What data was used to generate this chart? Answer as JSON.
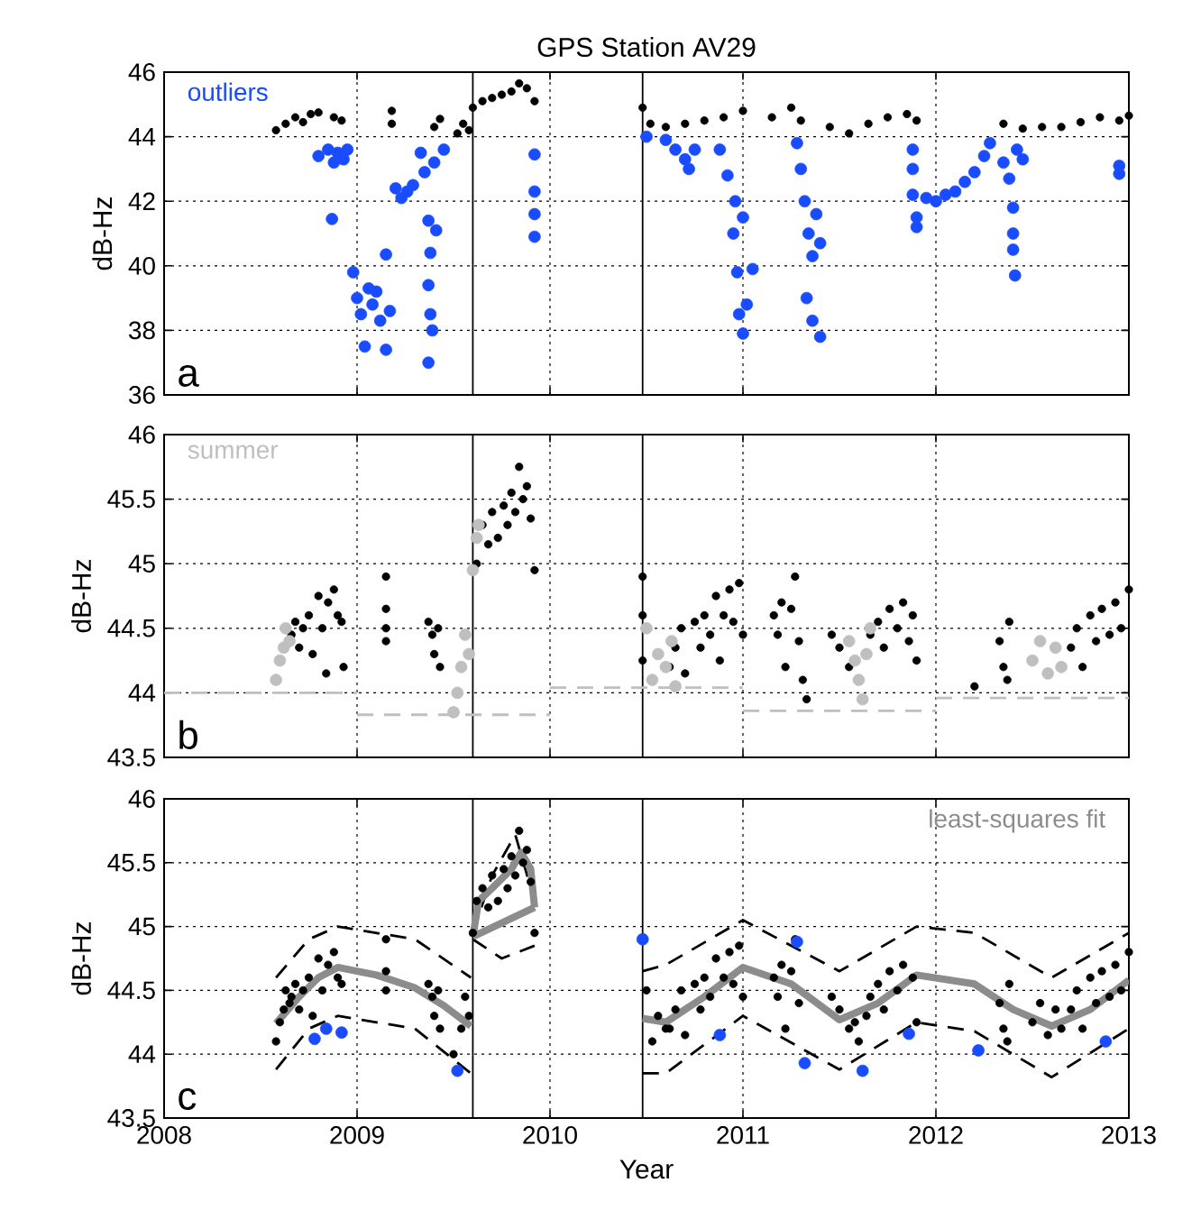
{
  "chart_data": [
    {
      "type": "scatter",
      "title": "GPS Station  AV29",
      "ylabel": "dB-Hz",
      "xlim": [
        2008,
        2013
      ],
      "xticks": [
        2008,
        2009,
        2010,
        2011,
        2012,
        2013
      ],
      "ylim": [
        36,
        46
      ],
      "yticks": [
        36,
        38,
        40,
        42,
        44,
        46
      ],
      "tick_labels": "y",
      "grid": true,
      "legend": "top left",
      "marker": "circle",
      "annotations": [
        "a"
      ],
      "ref_lines": [
        {
          "axis": "x",
          "value": 2009.6,
          "color": "#000000"
        },
        {
          "axis": "x",
          "value": 2010.48,
          "color": "#000000"
        }
      ],
      "series": [
        {
          "color": "#000000",
          "x": [
            2008.58,
            2008.63,
            2008.68,
            2008.72,
            2008.76,
            2008.8,
            2008.88,
            2008.92,
            2009.18,
            2009.18,
            2009.4,
            2009.43,
            2009.52,
            2009.55,
            2009.58,
            2009.6,
            2009.65,
            2009.7,
            2009.75,
            2009.8,
            2009.84,
            2009.88,
            2009.92,
            2010.48,
            2010.52,
            2010.6,
            2010.7,
            2010.8,
            2010.9,
            2011.0,
            2011.15,
            2011.25,
            2011.3,
            2011.45,
            2011.55,
            2011.65,
            2011.75,
            2011.85,
            2011.9,
            2012.35,
            2012.45,
            2012.55,
            2012.65,
            2012.75,
            2012.85,
            2012.95,
            2013.0
          ],
          "values": [
            44.2,
            44.4,
            44.6,
            44.45,
            44.7,
            44.75,
            44.6,
            44.5,
            44.8,
            44.4,
            44.3,
            44.55,
            44.1,
            44.4,
            44.2,
            44.9,
            45.1,
            45.2,
            45.3,
            45.4,
            45.65,
            45.5,
            45.1,
            44.9,
            44.4,
            44.3,
            44.4,
            44.5,
            44.6,
            44.8,
            44.6,
            44.9,
            44.5,
            44.3,
            44.1,
            44.4,
            44.6,
            44.7,
            44.5,
            44.4,
            44.25,
            44.3,
            44.3,
            44.45,
            44.6,
            44.5,
            44.65
          ]
        },
        {
          "name": "outliers",
          "color": "#1a4cff",
          "x": [
            2008.8,
            2008.85,
            2008.88,
            2008.9,
            2008.93,
            2008.95,
            2008.87,
            2008.98,
            2009.0,
            2009.02,
            2009.04,
            2009.06,
            2009.08,
            2009.1,
            2009.12,
            2009.15,
            2009.17,
            2009.15,
            2009.2,
            2009.23,
            2009.26,
            2009.29,
            2009.33,
            2009.35,
            2009.37,
            2009.38,
            2009.37,
            2009.38,
            2009.37,
            2009.39,
            2009.41,
            2009.4,
            2009.45,
            2009.92,
            2009.92,
            2009.92,
            2009.92,
            2010.5,
            2010.6,
            2010.65,
            2010.7,
            2010.75,
            2010.72,
            2010.88,
            2010.92,
            2010.96,
            2010.95,
            2011.0,
            2010.97,
            2010.98,
            2011.0,
            2011.02,
            2011.05,
            2011.28,
            2011.3,
            2011.32,
            2011.34,
            2011.36,
            2011.33,
            2011.36,
            2011.4,
            2011.38,
            2011.4,
            2011.88,
            2011.88,
            2011.88,
            2011.9,
            2011.9,
            2011.95,
            2012.0,
            2012.05,
            2012.1,
            2012.15,
            2012.2,
            2012.25,
            2012.28,
            2012.35,
            2012.38,
            2012.42,
            2012.4,
            2012.4,
            2012.4,
            2012.41,
            2012.45,
            2012.95,
            2012.95
          ],
          "values": [
            43.4,
            43.6,
            43.2,
            43.5,
            43.3,
            43.6,
            41.45,
            39.8,
            39.0,
            38.5,
            37.5,
            39.3,
            38.8,
            39.2,
            38.3,
            37.4,
            38.6,
            40.35,
            42.4,
            42.1,
            42.3,
            42.5,
            43.5,
            42.9,
            41.4,
            40.4,
            39.4,
            38.5,
            37.0,
            38.0,
            41.1,
            43.2,
            43.6,
            43.45,
            42.3,
            41.6,
            40.9,
            44.0,
            43.9,
            43.6,
            43.3,
            43.6,
            43.0,
            43.6,
            42.8,
            42.0,
            41.0,
            41.5,
            39.8,
            38.5,
            37.9,
            38.8,
            39.9,
            43.8,
            43.0,
            42.0,
            41.0,
            40.3,
            39.0,
            38.3,
            37.8,
            41.6,
            40.7,
            43.6,
            43.0,
            42.2,
            41.5,
            41.2,
            42.1,
            42.0,
            42.2,
            42.3,
            42.6,
            42.9,
            43.4,
            43.8,
            43.2,
            42.7,
            43.6,
            41.8,
            41.0,
            40.5,
            39.7,
            43.3,
            43.1,
            42.85
          ]
        }
      ]
    },
    {
      "type": "scatter",
      "ylabel": "dB-Hz",
      "xlim": [
        2008,
        2013
      ],
      "xticks": [
        2008,
        2009,
        2010,
        2011,
        2012,
        2013
      ],
      "ylim": [
        43.5,
        46
      ],
      "yticks": [
        43.5,
        44,
        44.5,
        45,
        45.5,
        46
      ],
      "tick_labels": "y",
      "grid": true,
      "legend": "top left",
      "marker": "circle",
      "annotations": [
        "b"
      ],
      "ref_lines": [
        {
          "axis": "x",
          "value": 2009.6,
          "color": "#000000"
        },
        {
          "axis": "x",
          "value": 2010.48,
          "color": "#000000"
        }
      ],
      "series": [
        {
          "type": "line",
          "color": "#bfbfbf",
          "line_style": "dashed",
          "marker": "none",
          "x": [
            2008,
            2009,
            null,
            2009,
            2010,
            null,
            2010,
            2011,
            null,
            2011,
            2012,
            null,
            2012,
            2013
          ],
          "values": [
            44.0,
            44.0,
            null,
            43.83,
            43.83,
            null,
            44.04,
            44.04,
            null,
            43.86,
            43.86,
            null,
            43.96,
            43.96
          ]
        },
        {
          "color": "#000000",
          "x": [
            2008.66,
            2008.68,
            2008.7,
            2008.72,
            2008.75,
            2008.77,
            2008.8,
            2008.82,
            2008.84,
            2008.85,
            2008.88,
            2008.9,
            2008.92,
            2008.93,
            2009.15,
            2009.15,
            2009.15,
            2009.15,
            2009.37,
            2009.39,
            2009.4,
            2009.42,
            2009.43,
            2009.62,
            2009.65,
            2009.68,
            2009.7,
            2009.73,
            2009.76,
            2009.78,
            2009.8,
            2009.82,
            2009.84,
            2009.86,
            2009.88,
            2009.9,
            2009.92,
            2010.48,
            2010.48,
            2010.48,
            2010.62,
            2010.65,
            2010.68,
            2010.7,
            2010.75,
            2010.78,
            2010.8,
            2010.83,
            2010.86,
            2010.88,
            2010.9,
            2010.93,
            2010.95,
            2010.98,
            2011.0,
            2011.16,
            2011.18,
            2011.2,
            2011.22,
            2011.25,
            2011.27,
            2011.29,
            2011.31,
            2011.33,
            2011.46,
            2011.5,
            2011.55,
            2011.66,
            2011.7,
            2011.73,
            2011.76,
            2011.8,
            2011.83,
            2011.86,
            2011.88,
            2011.9,
            2012.2,
            2012.33,
            2012.35,
            2012.37,
            2012.38,
            2012.7,
            2012.73,
            2012.76,
            2012.8,
            2012.83,
            2012.86,
            2012.9,
            2012.93,
            2012.96,
            2013.0
          ],
          "values": [
            44.45,
            44.55,
            44.35,
            44.5,
            44.6,
            44.3,
            44.75,
            44.5,
            44.15,
            44.7,
            44.8,
            44.6,
            44.55,
            44.2,
            44.9,
            44.65,
            44.5,
            44.4,
            44.55,
            44.45,
            44.3,
            44.5,
            44.2,
            45.0,
            45.3,
            45.15,
            45.4,
            45.2,
            45.45,
            45.3,
            45.55,
            45.4,
            45.75,
            45.5,
            45.6,
            45.35,
            44.95,
            44.9,
            44.6,
            44.25,
            44.2,
            44.35,
            44.5,
            44.15,
            44.55,
            44.35,
            44.6,
            44.45,
            44.75,
            44.25,
            44.6,
            44.8,
            44.55,
            44.85,
            44.45,
            44.6,
            44.45,
            44.7,
            44.2,
            44.65,
            44.9,
            44.4,
            44.1,
            43.95,
            44.45,
            44.35,
            44.2,
            44.45,
            44.55,
            44.35,
            44.65,
            44.5,
            44.7,
            44.4,
            44.6,
            44.25,
            44.05,
            44.4,
            44.2,
            44.1,
            44.55,
            44.35,
            44.5,
            44.2,
            44.6,
            44.4,
            44.65,
            44.45,
            44.7,
            44.5,
            44.8
          ]
        },
        {
          "name": "summer",
          "color": "#bfbfbf",
          "marker": "circle",
          "x": [
            2008.58,
            2008.6,
            2008.62,
            2008.63,
            2008.65,
            2009.5,
            2009.52,
            2009.54,
            2009.56,
            2009.58,
            2009.6,
            2009.62,
            2009.63,
            2010.5,
            2010.53,
            2010.56,
            2010.6,
            2010.63,
            2010.65,
            2011.55,
            2011.58,
            2011.6,
            2011.62,
            2011.64,
            2011.66,
            2012.5,
            2012.54,
            2012.58,
            2012.62,
            2012.65
          ],
          "values": [
            44.1,
            44.25,
            44.35,
            44.5,
            44.4,
            43.85,
            44.0,
            44.2,
            44.45,
            44.3,
            44.95,
            45.2,
            45.3,
            44.5,
            44.1,
            44.3,
            44.2,
            44.4,
            44.05,
            44.4,
            44.25,
            44.1,
            43.95,
            44.3,
            44.5,
            44.25,
            44.4,
            44.15,
            44.35,
            44.2
          ]
        }
      ]
    },
    {
      "type": "scatter",
      "xlabel": "Year",
      "ylabel": "dB-Hz",
      "xlim": [
        2008,
        2013
      ],
      "xticks": [
        2008,
        2009,
        2010,
        2011,
        2012,
        2013
      ],
      "ylim": [
        43.5,
        46
      ],
      "yticks": [
        43.5,
        44,
        44.5,
        45,
        45.5,
        46
      ],
      "grid": true,
      "legend": "top right",
      "marker": "circle",
      "annotations": [
        "c"
      ],
      "ref_lines": [
        {
          "axis": "x",
          "value": 2009.6,
          "color": "#000000"
        },
        {
          "axis": "x",
          "value": 2010.48,
          "color": "#000000"
        }
      ],
      "series": [
        {
          "color": "#000000",
          "marker": "circle",
          "x": [
            2008.58,
            2008.6,
            2008.62,
            2008.63,
            2008.65,
            2008.66,
            2008.68,
            2008.7,
            2008.72,
            2008.75,
            2008.77,
            2008.8,
            2008.82,
            2008.85,
            2008.88,
            2008.9,
            2008.92,
            2009.15,
            2009.15,
            2009.15,
            2009.37,
            2009.39,
            2009.4,
            2009.42,
            2009.43,
            2009.5,
            2009.54,
            2009.56,
            2009.58,
            2009.6,
            2009.62,
            2009.65,
            2009.68,
            2009.7,
            2009.73,
            2009.76,
            2009.78,
            2009.8,
            2009.82,
            2009.84,
            2009.86,
            2009.88,
            2009.9,
            2009.92,
            2010.5,
            2010.53,
            2010.56,
            2010.6,
            2010.62,
            2010.65,
            2010.68,
            2010.7,
            2010.75,
            2010.78,
            2010.8,
            2010.83,
            2010.86,
            2010.9,
            2010.93,
            2010.95,
            2010.98,
            2011.0,
            2011.16,
            2011.18,
            2011.2,
            2011.22,
            2011.25,
            2011.27,
            2011.29,
            2011.46,
            2011.5,
            2011.55,
            2011.58,
            2011.6,
            2011.64,
            2011.66,
            2011.7,
            2011.73,
            2011.76,
            2011.8,
            2011.83,
            2011.88,
            2011.9,
            2012.33,
            2012.35,
            2012.37,
            2012.38,
            2012.5,
            2012.54,
            2012.58,
            2012.62,
            2012.65,
            2012.7,
            2012.73,
            2012.76,
            2012.8,
            2012.83,
            2012.86,
            2012.9,
            2012.93,
            2012.96,
            2013.0
          ],
          "values": [
            44.1,
            44.25,
            44.35,
            44.5,
            44.4,
            44.45,
            44.55,
            44.35,
            44.5,
            44.6,
            44.3,
            44.75,
            44.5,
            44.7,
            44.8,
            44.6,
            44.55,
            44.9,
            44.65,
            44.5,
            44.55,
            44.45,
            44.3,
            44.5,
            44.2,
            44.0,
            44.2,
            44.45,
            44.3,
            44.95,
            45.2,
            45.3,
            45.15,
            45.4,
            45.2,
            45.45,
            45.3,
            45.55,
            45.4,
            45.75,
            45.5,
            45.6,
            45.35,
            44.95,
            44.5,
            44.1,
            44.3,
            44.2,
            44.2,
            44.35,
            44.5,
            44.15,
            44.55,
            44.35,
            44.6,
            44.45,
            44.75,
            44.6,
            44.8,
            44.55,
            44.85,
            44.45,
            44.6,
            44.45,
            44.7,
            44.2,
            44.65,
            44.9,
            44.4,
            44.45,
            44.35,
            44.2,
            44.25,
            44.1,
            44.3,
            44.45,
            44.55,
            44.35,
            44.65,
            44.5,
            44.7,
            44.6,
            44.25,
            44.4,
            44.2,
            44.1,
            44.55,
            44.25,
            44.4,
            44.15,
            44.35,
            44.2,
            44.35,
            44.5,
            44.2,
            44.6,
            44.4,
            44.65,
            44.45,
            44.7,
            44.5,
            44.8
          ]
        },
        {
          "type": "line",
          "color": "#000000",
          "line_style": "dashed",
          "marker": "none",
          "x": [
            2008.58,
            2008.75,
            2008.9,
            2009.3,
            2009.59,
            null,
            2009.6,
            2009.7,
            2009.82,
            2009.92,
            null,
            2010.48,
            2010.6,
            2011.0,
            2011.5,
            2011.9,
            2012.2,
            2012.6,
            2013.0
          ],
          "values": [
            44.6,
            44.9,
            45.0,
            44.9,
            44.6,
            null,
            44.95,
            45.4,
            45.72,
            45.2,
            null,
            44.65,
            44.7,
            45.05,
            44.65,
            45.0,
            44.95,
            44.6,
            44.95
          ]
        },
        {
          "type": "line",
          "color": "#000000",
          "line_style": "dashed",
          "marker": "none",
          "x": [
            2008.58,
            2008.75,
            2008.9,
            2009.3,
            2009.59,
            null,
            2009.6,
            2009.75,
            2009.92,
            null,
            2010.48,
            2010.6,
            2011.0,
            2011.5,
            2011.9,
            2012.2,
            2012.6,
            2013.0
          ],
          "values": [
            43.88,
            44.2,
            44.3,
            44.2,
            43.85,
            null,
            44.9,
            44.75,
            44.85,
            null,
            43.85,
            43.85,
            44.3,
            43.88,
            44.25,
            44.18,
            43.82,
            44.2
          ]
        },
        {
          "type": "line",
          "color": "#8c8c8c",
          "line_style": "solid",
          "marker": "none",
          "x": [
            2009.6,
            2009.92
          ],
          "values": [
            44.92,
            45.15
          ]
        },
        {
          "type": "line",
          "name": "least-squares fit",
          "color": "#8c8c8c",
          "line_style": "solid",
          "marker": "none",
          "x": [
            2008.58,
            2008.7,
            2008.8,
            2008.9,
            2009.1,
            2009.3,
            2009.45,
            2009.59,
            null,
            2009.6,
            2009.63,
            2009.7,
            2009.8,
            2009.85,
            2009.9,
            2009.92,
            null,
            2010.48,
            2010.6,
            2010.8,
            2011.0,
            2011.25,
            2011.5,
            2011.7,
            2011.9,
            2012.2,
            2012.4,
            2012.6,
            2012.8,
            2013.0
          ],
          "values": [
            44.24,
            44.45,
            44.6,
            44.68,
            44.62,
            44.52,
            44.38,
            44.22,
            null,
            44.92,
            45.2,
            45.3,
            45.45,
            45.58,
            45.45,
            45.15,
            null,
            44.28,
            44.25,
            44.45,
            44.68,
            44.55,
            44.27,
            44.4,
            44.62,
            44.55,
            44.35,
            44.22,
            44.35,
            44.58
          ]
        },
        {
          "color": "#1a4cff",
          "marker": "circle",
          "x": [
            2008.78,
            2008.84,
            2008.92,
            2009.52,
            2010.48,
            2010.88,
            2011.28,
            2011.32,
            2011.62,
            2011.86,
            2012.22,
            2012.88
          ],
          "values": [
            44.12,
            44.2,
            44.17,
            43.87,
            44.9,
            44.15,
            44.88,
            43.93,
            43.87,
            44.16,
            44.03,
            44.1
          ]
        }
      ]
    }
  ]
}
